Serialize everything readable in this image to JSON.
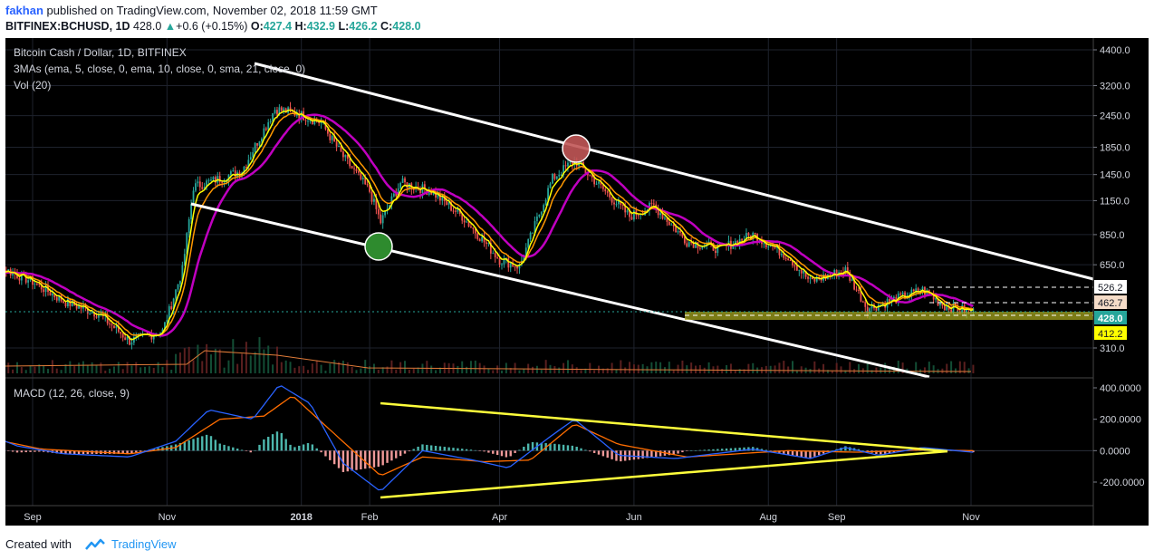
{
  "header": {
    "author": "fakhan",
    "published_text": "published on TradingView.com, November 02, 2018 11:59 GMT",
    "symbol": "BITFINEX:BCHUSD, 1D",
    "last": "428.0",
    "change": "+0.6 (+0.15%)",
    "open_label": "O:",
    "open": "427.4",
    "high_label": "H:",
    "high": "432.9",
    "low_label": "L:",
    "low": "426.2",
    "close_label": "C:",
    "close": "428.0"
  },
  "legend": {
    "line1": "Bitcoin Cash / Dollar, 1D, BITFINEX",
    "line2": "3MAs (ema, 5, close, 0, ema, 10, close, 0, sma, 21, close, 0)",
    "line3": "Vol (20)",
    "macd": "MACD (12, 26, close, 9)"
  },
  "colors": {
    "candle_up": "#26a69a",
    "candle_down": "#ef5350",
    "ema5": "#ffff00",
    "ema10": "#ff9800",
    "sma21": "#c000c0",
    "trendline": "#ffffff",
    "triangle": "#ffff3b",
    "macd_line": "#2962ff",
    "signal_line": "#ff6d00",
    "background": "#000000",
    "top_circle": "#c15656",
    "bottom_circle": "#2e8b2e"
  },
  "chart_data": [
    {
      "type": "line",
      "title": "Bitcoin Cash / Dollar, 1D, BITFINEX",
      "scale": "log",
      "x_ticks": [
        "Sep",
        "Nov",
        "2018",
        "Feb",
        "Apr",
        "Jun",
        "Aug",
        "Sep",
        "Nov"
      ],
      "y_ticks": [
        "4400.0",
        "3200.0",
        "2450.0",
        "1850.0",
        "1450.0",
        "1150.0",
        "850.0",
        "650.0",
        "310.0"
      ],
      "price_labels": [
        {
          "text": "526.2",
          "kind": "white"
        },
        {
          "text": "462.7",
          "kind": "peach"
        },
        {
          "text": "428.0",
          "kind": "current"
        },
        {
          "text": "412.2",
          "kind": "yellow"
        }
      ],
      "approx_close": [
        {
          "x": "2017-08-05",
          "y": 600
        },
        {
          "x": "2017-08-20",
          "y": 620
        },
        {
          "x": "2017-09-01",
          "y": 560
        },
        {
          "x": "2017-09-15",
          "y": 470
        },
        {
          "x": "2017-10-01",
          "y": 420
        },
        {
          "x": "2017-10-15",
          "y": 330
        },
        {
          "x": "2017-10-30",
          "y": 360
        },
        {
          "x": "2017-11-08",
          "y": 620
        },
        {
          "x": "2017-11-13",
          "y": 1300
        },
        {
          "x": "2017-11-25",
          "y": 1400
        },
        {
          "x": "2017-12-05",
          "y": 1500
        },
        {
          "x": "2017-12-20",
          "y": 2600
        },
        {
          "x": "2017-12-30",
          "y": 2500
        },
        {
          "x": "2018-01-10",
          "y": 2300
        },
        {
          "x": "2018-01-20",
          "y": 1700
        },
        {
          "x": "2018-02-01",
          "y": 1250
        },
        {
          "x": "2018-02-06",
          "y": 950
        },
        {
          "x": "2018-02-15",
          "y": 1350
        },
        {
          "x": "2018-03-01",
          "y": 1250
        },
        {
          "x": "2018-03-15",
          "y": 1000
        },
        {
          "x": "2018-04-01",
          "y": 680
        },
        {
          "x": "2018-04-10",
          "y": 640
        },
        {
          "x": "2018-04-25",
          "y": 1400
        },
        {
          "x": "2018-05-05",
          "y": 1650
        },
        {
          "x": "2018-05-15",
          "y": 1350
        },
        {
          "x": "2018-05-30",
          "y": 1000
        },
        {
          "x": "2018-06-10",
          "y": 1100
        },
        {
          "x": "2018-06-25",
          "y": 800
        },
        {
          "x": "2018-07-10",
          "y": 750
        },
        {
          "x": "2018-07-25",
          "y": 850
        },
        {
          "x": "2018-08-10",
          "y": 700
        },
        {
          "x": "2018-08-20",
          "y": 560
        },
        {
          "x": "2018-09-05",
          "y": 620
        },
        {
          "x": "2018-09-15",
          "y": 440
        },
        {
          "x": "2018-09-25",
          "y": 470
        },
        {
          "x": "2018-10-10",
          "y": 520
        },
        {
          "x": "2018-10-20",
          "y": 450
        },
        {
          "x": "2018-11-02",
          "y": 428
        }
      ]
    },
    {
      "type": "line",
      "title": "MACD (12, 26, close, 9)",
      "y_ticks": [
        "400.0000",
        "200.0000",
        "0.0000",
        "-200.0000"
      ],
      "series": [
        {
          "name": "MACD",
          "values": [
            {
              "x": "2017-08-05",
              "y": 140
            },
            {
              "x": "2017-08-25",
              "y": 30
            },
            {
              "x": "2017-09-15",
              "y": -20
            },
            {
              "x": "2017-10-15",
              "y": -40
            },
            {
              "x": "2017-11-05",
              "y": 60
            },
            {
              "x": "2017-11-20",
              "y": 260
            },
            {
              "x": "2017-12-10",
              "y": 200
            },
            {
              "x": "2017-12-22",
              "y": 420
            },
            {
              "x": "2018-01-05",
              "y": 300
            },
            {
              "x": "2018-01-20",
              "y": -80
            },
            {
              "x": "2018-02-06",
              "y": -260
            },
            {
              "x": "2018-02-25",
              "y": 0
            },
            {
              "x": "2018-03-20",
              "y": -60
            },
            {
              "x": "2018-04-05",
              "y": -110
            },
            {
              "x": "2018-04-25",
              "y": 100
            },
            {
              "x": "2018-05-05",
              "y": 200
            },
            {
              "x": "2018-05-25",
              "y": -30
            },
            {
              "x": "2018-06-20",
              "y": -50
            },
            {
              "x": "2018-07-25",
              "y": 10
            },
            {
              "x": "2018-08-20",
              "y": -50
            },
            {
              "x": "2018-09-05",
              "y": 20
            },
            {
              "x": "2018-09-20",
              "y": -30
            },
            {
              "x": "2018-10-10",
              "y": 20
            },
            {
              "x": "2018-11-02",
              "y": -10
            }
          ]
        },
        {
          "name": "Signal",
          "values": [
            {
              "x": "2017-08-05",
              "y": 100
            },
            {
              "x": "2017-09-05",
              "y": 10
            },
            {
              "x": "2017-10-15",
              "y": -20
            },
            {
              "x": "2017-11-05",
              "y": 20
            },
            {
              "x": "2017-11-25",
              "y": 200
            },
            {
              "x": "2017-12-15",
              "y": 220
            },
            {
              "x": "2017-12-28",
              "y": 350
            },
            {
              "x": "2018-01-15",
              "y": 120
            },
            {
              "x": "2018-02-06",
              "y": -160
            },
            {
              "x": "2018-02-25",
              "y": -40
            },
            {
              "x": "2018-03-25",
              "y": -70
            },
            {
              "x": "2018-04-15",
              "y": -60
            },
            {
              "x": "2018-05-05",
              "y": 170
            },
            {
              "x": "2018-05-25",
              "y": 40
            },
            {
              "x": "2018-06-25",
              "y": -40
            },
            {
              "x": "2018-08-10",
              "y": 0
            },
            {
              "x": "2018-09-10",
              "y": -10
            },
            {
              "x": "2018-10-10",
              "y": 5
            },
            {
              "x": "2018-11-02",
              "y": 0
            }
          ]
        }
      ]
    }
  ],
  "footer": {
    "created_with": "Created with",
    "brand": "TradingView"
  }
}
